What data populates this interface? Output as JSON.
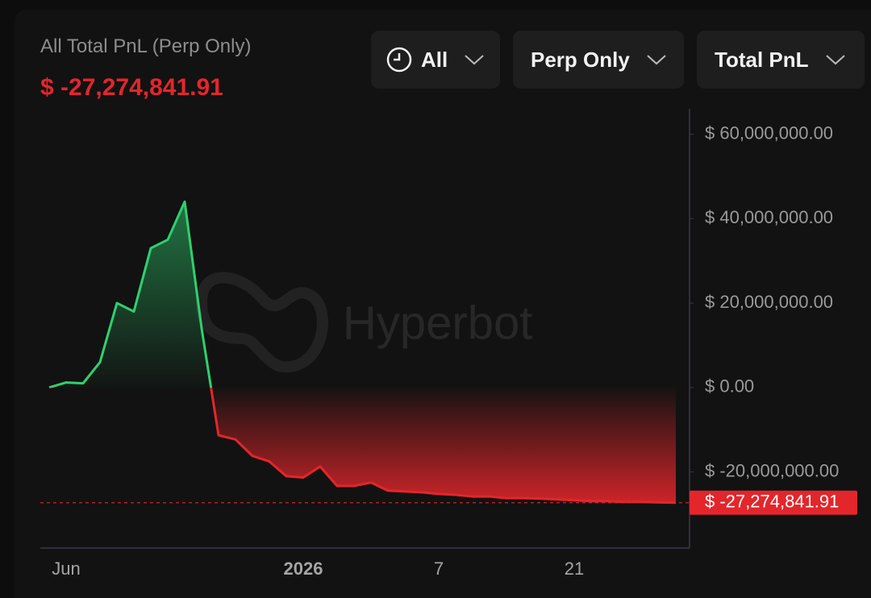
{
  "header": {
    "title": "All Total PnL (Perp Only)",
    "value": "$ -27,274,841.91"
  },
  "filters": [
    "All",
    "Perp Only",
    "Total PnL"
  ],
  "watermark": "Hyperbot",
  "chart_data": {
    "type": "line",
    "categories": [
      null,
      "Jun",
      null,
      null,
      null,
      null,
      null,
      null,
      null,
      null,
      null,
      null,
      null,
      null,
      null,
      "2026",
      null,
      null,
      null,
      null,
      null,
      null,
      null,
      "7",
      null,
      null,
      null,
      null,
      null,
      null,
      null,
      "21",
      null,
      null,
      null,
      null,
      null,
      null
    ],
    "values": [
      0,
      1200000,
      1000000,
      6000000,
      20000000,
      18000000,
      33000000,
      35000000,
      44000000,
      14000000,
      -11300000,
      -12300000,
      -16200000,
      -17500000,
      -21000000,
      -21300000,
      -18700000,
      -23300000,
      -23300000,
      -22500000,
      -24400000,
      -24600000,
      -24800000,
      -25200000,
      -25400000,
      -25800000,
      -25800000,
      -26200000,
      -26200000,
      -26300000,
      -26500000,
      -26700000,
      -26900000,
      -26900000,
      -27100000,
      -27100000,
      -27200000,
      -27274841.91
    ],
    "positive_color": "#2fd06e",
    "negative_color": "#e3262b",
    "ylim": [
      -38000000,
      66000000
    ],
    "yticks": [
      {
        "value": 60000000,
        "label": "$ 60,000,000.00"
      },
      {
        "value": 40000000,
        "label": "$ 40,000,000.00"
      },
      {
        "value": 20000000,
        "label": "$ 20,000,000.00"
      },
      {
        "value": 0,
        "label": "$ 0.00"
      },
      {
        "value": -20000000,
        "label": "$ -20,000,000.00"
      }
    ]
  }
}
